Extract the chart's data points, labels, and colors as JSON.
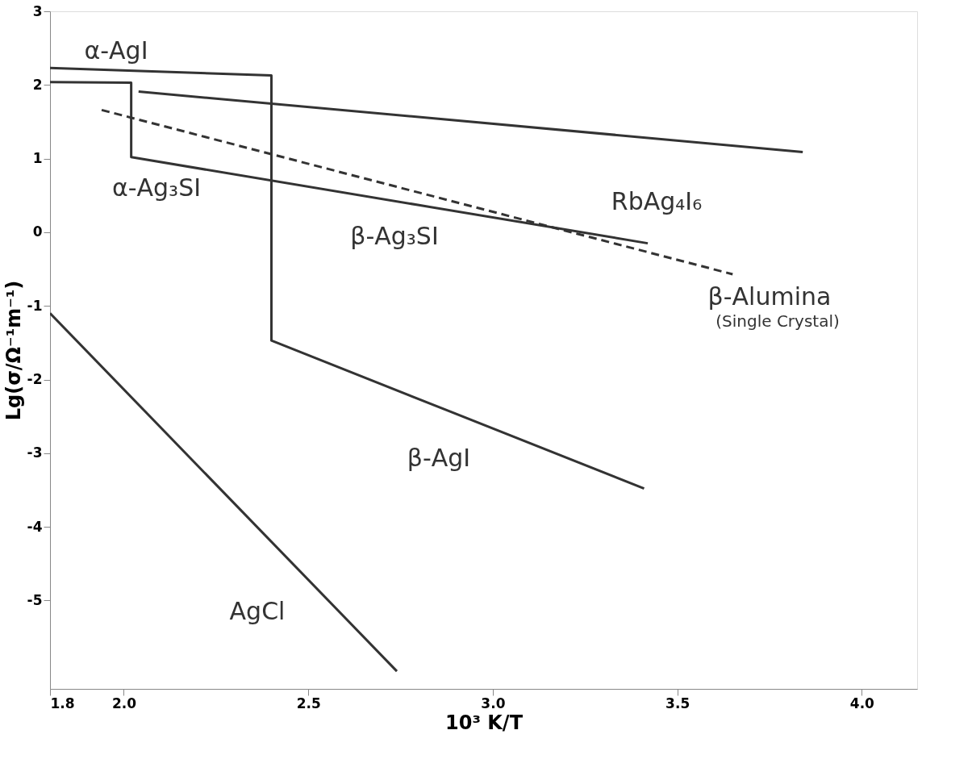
{
  "chart_data": {
    "type": "line",
    "xlabel": "10³ K/T",
    "ylabel": "Lg(σ/Ω⁻¹m⁻¹)",
    "xlim": [
      1.8,
      4.15
    ],
    "ylim": [
      -6.2,
      3
    ],
    "xticks": [
      1.8,
      {
        "value": 2.0,
        "label": "2.0"
      },
      2.5,
      {
        "value": 3.0,
        "label": "3.0"
      },
      3.5,
      {
        "value": 4.0,
        "label": "4.0"
      }
    ],
    "yticks": [
      -5,
      -4,
      -3,
      -2,
      -1,
      0,
      1,
      2,
      3
    ],
    "grid": false,
    "marker": "none",
    "series": [
      {
        "color": "#333333",
        "line_style": "solid",
        "x": [
          1.8,
          2.4,
          2.4,
          3.41
        ],
        "values": [
          2.23,
          2.13,
          -1.47,
          -3.48
        ]
      },
      {
        "color": "#333333",
        "line_style": "solid",
        "x": [
          1.8,
          2.02,
          2.02,
          3.42
        ],
        "values": [
          2.04,
          2.03,
          1.02,
          -0.15
        ]
      },
      {
        "color": "#333333",
        "line_style": "solid",
        "x": [
          2.04,
          3.84
        ],
        "values": [
          1.91,
          1.09
        ]
      },
      {
        "color": "#333333",
        "line_style": "dashed",
        "x": [
          1.94,
          3.65
        ],
        "values": [
          1.66,
          -0.57
        ]
      },
      {
        "color": "#333333",
        "line_style": "solid",
        "x": [
          1.8,
          2.74
        ],
        "values": [
          -1.1,
          -5.96
        ]
      }
    ],
    "annotations": [
      "α-AgI",
      "α-Ag₃SI",
      "RbAg₄I₆",
      "β-Ag₃SI",
      "β-Alumina",
      "(Single Crystal)",
      "β-AgI",
      "AgCl"
    ]
  }
}
